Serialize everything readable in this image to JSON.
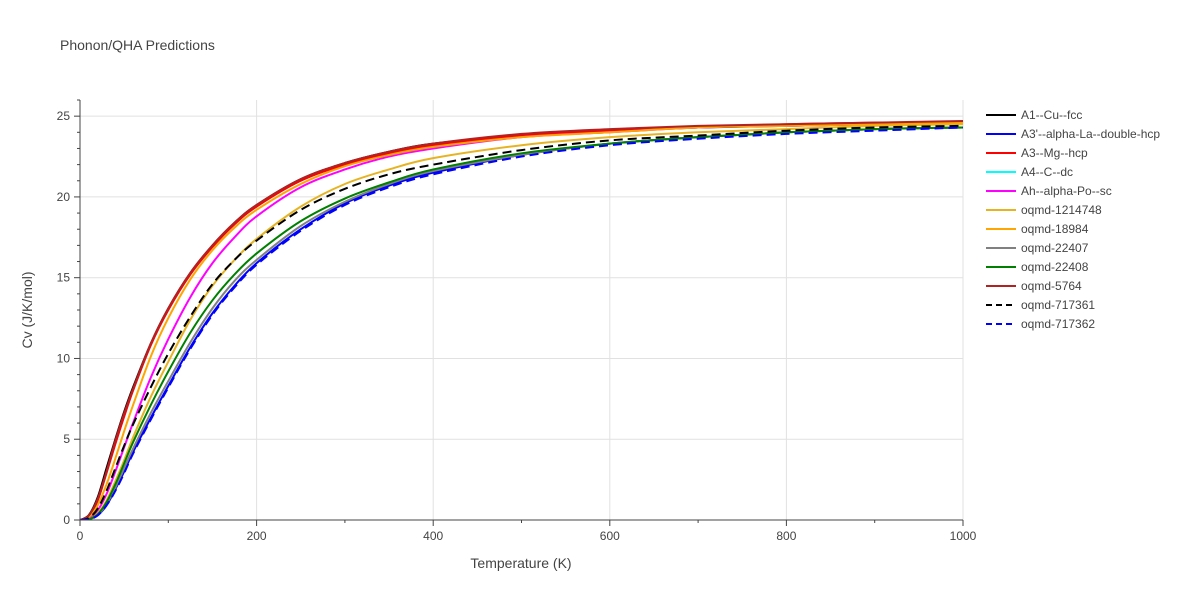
{
  "chart_data": {
    "type": "line",
    "title": "Phonon/QHA Predictions",
    "xlabel": "Temperature (K)",
    "ylabel": "Cv (J/K/mol)",
    "xlim": [
      0,
      1000
    ],
    "ylim": [
      0,
      26
    ],
    "xticks": [
      0,
      200,
      400,
      600,
      800,
      1000
    ],
    "yticks": [
      0,
      5,
      10,
      15,
      20,
      25
    ],
    "grid": true,
    "legend_position": "right",
    "series": [
      {
        "name": "A1--Cu--fcc",
        "color": "#000000",
        "dash": "solid",
        "x": [
          0,
          10,
          20,
          30,
          40,
          50,
          60,
          80,
          100,
          125,
          150,
          175,
          200,
          250,
          300,
          350,
          400,
          500,
          600,
          700,
          800,
          900,
          1000
        ],
        "y": [
          0,
          0.3,
          1.4,
          3.2,
          5.0,
          6.7,
          8.2,
          10.9,
          13.1,
          15.3,
          17.0,
          18.4,
          19.5,
          21.1,
          22.1,
          22.8,
          23.3,
          23.8,
          24.1,
          24.3,
          24.4,
          24.5,
          24.6
        ]
      },
      {
        "name": "A3'--alpha-La--double-hcp",
        "color": "#0000ff",
        "dash": "solid",
        "x": [
          0,
          10,
          20,
          30,
          40,
          50,
          60,
          80,
          100,
          125,
          150,
          175,
          200,
          250,
          300,
          350,
          400,
          500,
          600,
          700,
          800,
          900,
          1000
        ],
        "y": [
          0,
          0.05,
          0.3,
          0.9,
          1.9,
          3.0,
          4.2,
          6.3,
          8.3,
          10.7,
          12.8,
          14.5,
          15.9,
          18.0,
          19.6,
          20.7,
          21.5,
          22.6,
          23.3,
          23.7,
          24.0,
          24.2,
          24.3
        ]
      },
      {
        "name": "A3--Mg--hcp",
        "color": "#ff0000",
        "dash": "solid",
        "x": [
          0,
          10,
          20,
          30,
          40,
          50,
          60,
          80,
          100,
          125,
          150,
          175,
          200,
          250,
          300,
          350,
          400,
          500,
          600,
          700,
          800,
          900,
          1000
        ],
        "y": [
          0,
          0.25,
          1.2,
          2.9,
          4.7,
          6.4,
          8.0,
          10.8,
          13.0,
          15.2,
          16.9,
          18.3,
          19.4,
          21.0,
          22.0,
          22.7,
          23.2,
          23.8,
          24.1,
          24.3,
          24.5,
          24.6,
          24.6
        ]
      },
      {
        "name": "A4--C--dc",
        "color": "#00ffff",
        "dash": "solid",
        "x": [],
        "y": []
      },
      {
        "name": "Ah--alpha-Po--sc",
        "color": "#ff00ff",
        "dash": "solid",
        "x": [
          0,
          10,
          20,
          30,
          40,
          50,
          60,
          80,
          100,
          125,
          150,
          175,
          200,
          250,
          300,
          350,
          400,
          500,
          600,
          700,
          800,
          900,
          1000
        ],
        "y": [
          0,
          0.1,
          0.6,
          1.6,
          3.0,
          4.5,
          6.0,
          8.8,
          11.2,
          13.8,
          15.9,
          17.5,
          18.8,
          20.6,
          21.7,
          22.5,
          23.0,
          23.7,
          24.0,
          24.3,
          24.4,
          24.5,
          24.6
        ]
      },
      {
        "name": "oqmd-1214748",
        "color": "#e6b422",
        "dash": "solid",
        "x": [
          0,
          10,
          20,
          30,
          40,
          50,
          60,
          80,
          100,
          125,
          150,
          175,
          200,
          250,
          300,
          350,
          400,
          500,
          600,
          700,
          800,
          900,
          1000
        ],
        "y": [
          0,
          0.06,
          0.4,
          1.2,
          2.4,
          3.7,
          5.1,
          7.6,
          9.8,
          12.4,
          14.5,
          16.1,
          17.4,
          19.4,
          20.8,
          21.7,
          22.4,
          23.2,
          23.7,
          24.0,
          24.2,
          24.4,
          24.5
        ]
      },
      {
        "name": "oqmd-18984",
        "color": "#ffa500",
        "dash": "solid",
        "x": [
          0,
          10,
          20,
          30,
          40,
          50,
          60,
          80,
          100,
          125,
          150,
          175,
          200,
          250,
          300,
          350,
          400,
          500,
          600,
          700,
          800,
          900,
          1000
        ],
        "y": [
          0,
          0.2,
          0.9,
          2.2,
          3.8,
          5.5,
          7.1,
          10.1,
          12.5,
          14.9,
          16.7,
          18.1,
          19.2,
          20.8,
          21.9,
          22.6,
          23.1,
          23.7,
          24.0,
          24.3,
          24.4,
          24.5,
          24.6
        ]
      },
      {
        "name": "oqmd-22407",
        "color": "#808080",
        "dash": "solid",
        "x": [
          0,
          10,
          20,
          30,
          40,
          50,
          60,
          80,
          100,
          125,
          150,
          175,
          200,
          250,
          300,
          350,
          400,
          500,
          600,
          700,
          800,
          900,
          1000
        ],
        "y": [
          0,
          0.05,
          0.3,
          1.0,
          2.0,
          3.2,
          4.4,
          6.6,
          8.6,
          11.0,
          13.1,
          14.8,
          16.1,
          18.2,
          19.7,
          20.8,
          21.6,
          22.6,
          23.3,
          23.7,
          24.0,
          24.2,
          24.3
        ]
      },
      {
        "name": "oqmd-22408",
        "color": "#008000",
        "dash": "solid",
        "x": [
          0,
          10,
          20,
          30,
          40,
          50,
          60,
          80,
          100,
          125,
          150,
          175,
          200,
          250,
          300,
          350,
          400,
          500,
          600,
          700,
          800,
          900,
          1000
        ],
        "y": [
          0,
          0.05,
          0.35,
          1.1,
          2.2,
          3.5,
          4.8,
          7.1,
          9.2,
          11.6,
          13.6,
          15.2,
          16.5,
          18.5,
          19.9,
          20.9,
          21.7,
          22.7,
          23.3,
          23.7,
          24.0,
          24.2,
          24.3
        ]
      },
      {
        "name": "oqmd-5764",
        "color": "#b22222",
        "dash": "solid",
        "x": [
          0,
          10,
          20,
          30,
          40,
          50,
          60,
          80,
          100,
          125,
          150,
          175,
          200,
          250,
          300,
          350,
          400,
          500,
          600,
          700,
          800,
          900,
          1000
        ],
        "y": [
          0,
          0.28,
          1.3,
          3.0,
          4.9,
          6.6,
          8.1,
          10.9,
          13.1,
          15.3,
          17.0,
          18.4,
          19.5,
          21.1,
          22.1,
          22.8,
          23.3,
          23.9,
          24.2,
          24.4,
          24.5,
          24.6,
          24.7
        ]
      },
      {
        "name": "oqmd-717361",
        "color": "#000000",
        "dash": "dash",
        "x": [
          0,
          10,
          20,
          30,
          40,
          50,
          60,
          80,
          100,
          125,
          150,
          175,
          200,
          250,
          300,
          350,
          400,
          500,
          600,
          700,
          800,
          900,
          1000
        ],
        "y": [
          0,
          0.12,
          0.7,
          1.8,
          3.2,
          4.6,
          5.9,
          8.2,
          10.3,
          12.6,
          14.6,
          16.1,
          17.3,
          19.2,
          20.5,
          21.4,
          22.0,
          22.9,
          23.5,
          23.8,
          24.1,
          24.3,
          24.4
        ]
      },
      {
        "name": "oqmd-717362",
        "color": "#0000ff",
        "dash": "dash",
        "x": [
          0,
          10,
          20,
          30,
          40,
          50,
          60,
          80,
          100,
          125,
          150,
          175,
          200,
          250,
          300,
          350,
          400,
          500,
          600,
          700,
          800,
          900,
          1000
        ],
        "y": [
          0,
          0.04,
          0.28,
          0.9,
          1.8,
          2.9,
          4.1,
          6.2,
          8.2,
          10.6,
          12.7,
          14.4,
          15.8,
          17.9,
          19.5,
          20.6,
          21.4,
          22.5,
          23.2,
          23.6,
          23.9,
          24.1,
          24.3
        ]
      }
    ]
  }
}
